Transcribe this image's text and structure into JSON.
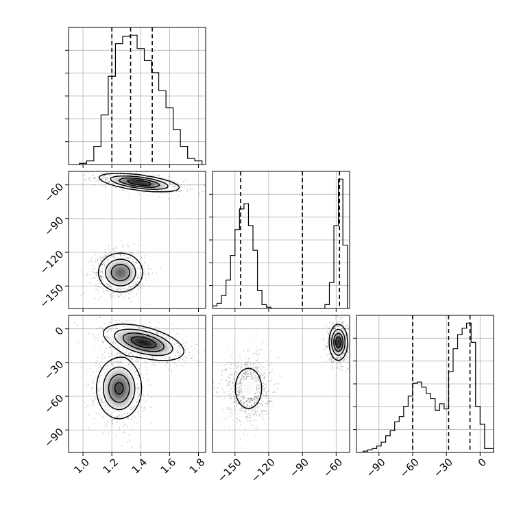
{
  "chart_data": {
    "type": "corner",
    "title": "",
    "parameters": [
      {
        "label": "",
        "range": [
          0.9,
          1.85
        ],
        "ticks": [
          1.0,
          1.2,
          1.4,
          1.6,
          1.8
        ],
        "tick_labels": [
          "1.0",
          "1.2",
          "1.4",
          "1.6",
          "1.8"
        ]
      },
      {
        "label": "",
        "range": [
          -170,
          -48
        ],
        "ticks": [
          -150,
          -120,
          -90,
          -60
        ],
        "tick_labels": [
          "−150",
          "−120",
          "−90",
          "−60"
        ]
      },
      {
        "label": "",
        "range": [
          -110,
          12
        ],
        "ticks": [
          -90,
          -60,
          -30,
          0
        ],
        "tick_labels": [
          "−90",
          "−60",
          "−30",
          "0"
        ]
      }
    ],
    "histograms": [
      {
        "param": 0,
        "bin_edges": [
          0.975,
          1.025,
          1.075,
          1.125,
          1.175,
          1.225,
          1.275,
          1.325,
          1.375,
          1.425,
          1.475,
          1.525,
          1.575,
          1.625,
          1.675,
          1.725,
          1.775,
          1.825
        ],
        "counts": [
          1,
          3,
          15,
          41,
          73,
          100,
          106,
          107,
          96,
          86,
          76,
          61,
          47,
          29,
          15,
          5,
          3
        ],
        "quantiles": [
          1.2,
          1.33,
          1.48
        ]
      },
      {
        "param": 1,
        "bin_edges": [
          -170,
          -166,
          -162,
          -158,
          -154,
          -150,
          -146,
          -142,
          -138,
          -134,
          -130,
          -126,
          -122,
          -118,
          -114,
          -110,
          -106,
          -102,
          -98,
          -94,
          -90,
          -86,
          -82,
          -78,
          -74,
          -70,
          -66,
          -62,
          -58,
          -54,
          -50
        ],
        "counts": [
          2,
          4,
          10,
          22,
          41,
          61,
          77,
          81,
          64,
          45,
          14,
          3,
          1,
          0,
          0,
          0,
          0,
          0,
          0,
          0,
          0,
          0,
          0,
          0,
          0,
          3,
          20,
          64,
          100,
          49
        ],
        "quantiles": [
          -145,
          -90,
          -57
        ]
      },
      {
        "param": 2,
        "bin_edges": [
          -108,
          -104,
          -100,
          -96,
          -92,
          -88,
          -84,
          -80,
          -76,
          -72,
          -68,
          -64,
          -60,
          -56,
          -52,
          -48,
          -44,
          -40,
          -36,
          -32,
          -28,
          -24,
          -20,
          -16,
          -12,
          -8,
          -4,
          0,
          4,
          8,
          12
        ],
        "counts": [
          0,
          1,
          2,
          3,
          5,
          8,
          13,
          17,
          24,
          28,
          36,
          44,
          54,
          55,
          51,
          46,
          42,
          33,
          38,
          34,
          63,
          81,
          92,
          97,
          101,
          86,
          36,
          22,
          3,
          3
        ],
        "quantiles": [
          -60,
          -28,
          -9
        ]
      }
    ],
    "scatter_pairs": [
      {
        "x_param": 0,
        "y_param": 1,
        "clusters": [
          {
            "center": [
              1.39,
              -58
            ],
            "sx": 0.13,
            "sy": 3.8,
            "rho": -0.55,
            "weight": 0.45
          },
          {
            "center": [
              1.26,
              -138
            ],
            "sx": 0.075,
            "sy": 8.5,
            "rho": 0.0,
            "weight": 0.55
          }
        ]
      },
      {
        "x_param": 0,
        "y_param": 2,
        "clusters": [
          {
            "center": [
              1.42,
              -12
            ],
            "sx": 0.13,
            "sy": 7.5,
            "rho": -0.5,
            "weight": 0.5
          },
          {
            "center": [
              1.25,
              -53
            ],
            "sx": 0.075,
            "sy": 13,
            "rho": 0.0,
            "weight": 0.5
          }
        ]
      },
      {
        "x_param": 1,
        "y_param": 2,
        "clusters": [
          {
            "center": [
              -58,
              -12
            ],
            "sx": 3.8,
            "sy": 7.5,
            "rho": 0.0,
            "weight": 0.5
          },
          {
            "center": [
              -138,
              -53
            ],
            "sx": 8.5,
            "sy": 13,
            "rho": 0.0,
            "weight": 0.5
          }
        ]
      }
    ],
    "grid": true,
    "legend": "none"
  }
}
